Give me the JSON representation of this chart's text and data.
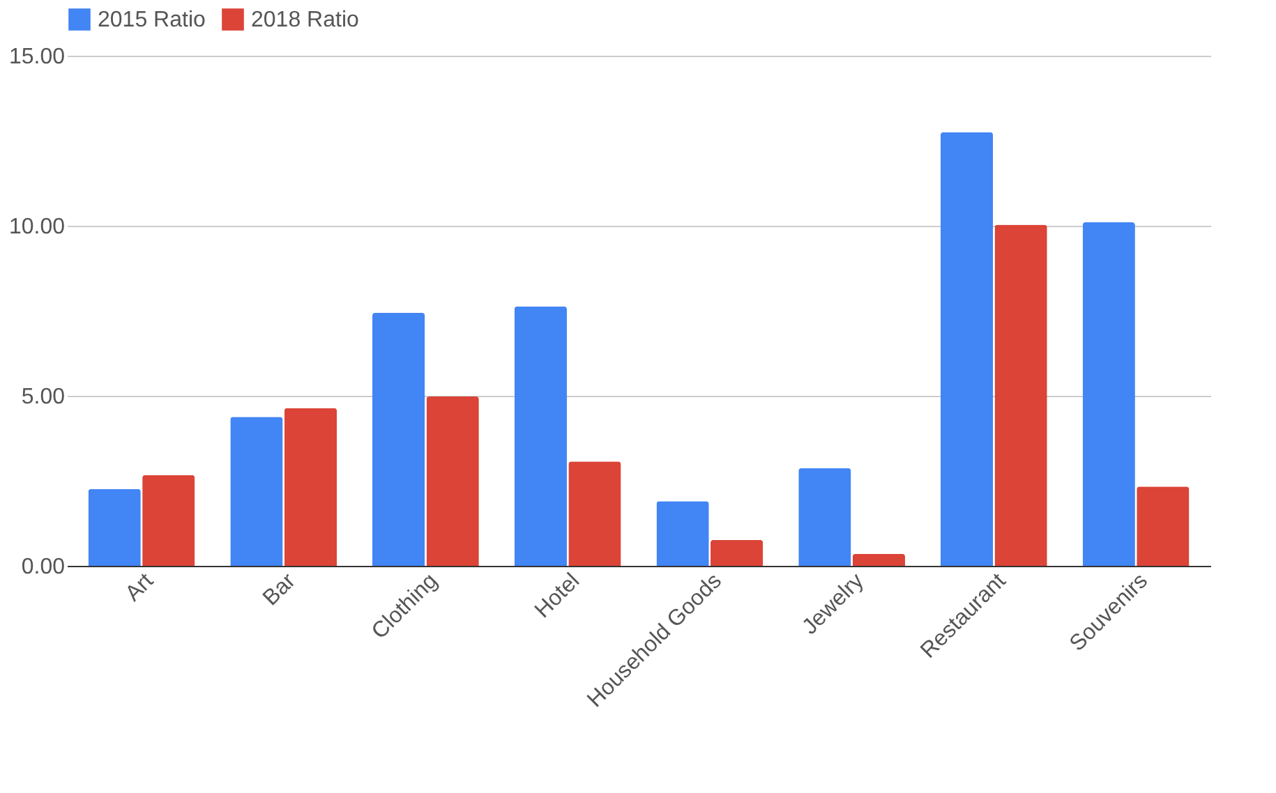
{
  "chart_data": {
    "type": "bar",
    "categories": [
      "Art",
      "Bar",
      "Clothing",
      "Hotel",
      "Household Goods",
      "Jewelry",
      "Restaurant",
      "Souvenirs"
    ],
    "series": [
      {
        "name": "2015 Ratio",
        "color": "#4285f4",
        "values": [
          2.26,
          4.38,
          7.44,
          7.63,
          1.9,
          2.87,
          12.75,
          10.1
        ]
      },
      {
        "name": "2018 Ratio",
        "color": "#db4437",
        "values": [
          2.67,
          4.64,
          4.98,
          3.07,
          0.76,
          0.35,
          10.03,
          2.33
        ]
      }
    ],
    "ylim": [
      0,
      15
    ],
    "yticks": [
      {
        "value": 0,
        "label": "0.00"
      },
      {
        "value": 5,
        "label": "5.00"
      },
      {
        "value": 10,
        "label": "10.00"
      },
      {
        "value": 15,
        "label": "15.00"
      }
    ],
    "grid": "y",
    "legend": "top"
  }
}
